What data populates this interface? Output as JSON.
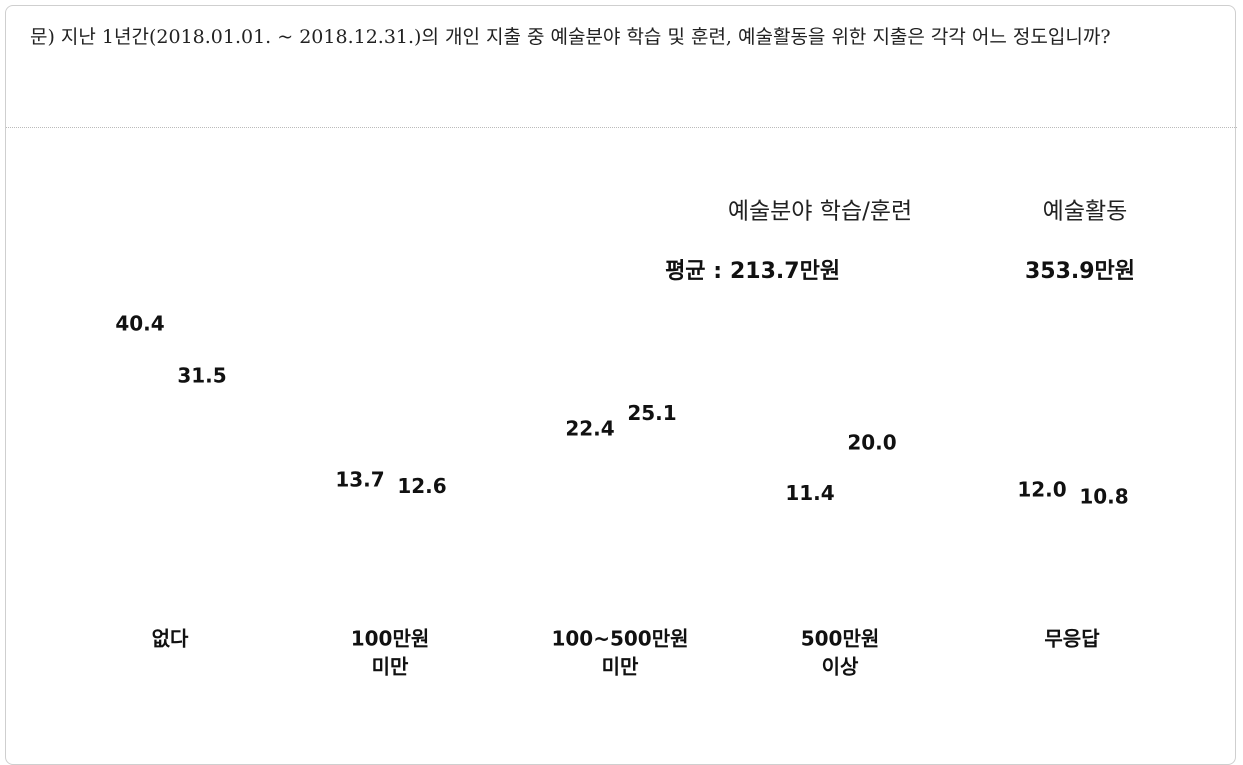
{
  "chart_data": {
    "type": "bar",
    "title": "문) 지난 1년간(2018.01.01. ~ 2018.12.31.)의 개인 지출 중 예술분야 학습 및 훈련, 예술활동을 위한 지출은 각각 어느 정도입니까?",
    "categories": [
      [
        "없다"
      ],
      [
        "100만원",
        "미만"
      ],
      [
        "100~500만원",
        "미만"
      ],
      [
        "500만원",
        "이상"
      ],
      [
        "무응답"
      ]
    ],
    "average_label": "평균 :",
    "series": [
      {
        "name": "예술분야 학습/훈련",
        "average": "213.7만원",
        "values": [
          40.4,
          13.7,
          22.4,
          11.4,
          12.0
        ],
        "value_labels": [
          "40.4",
          "13.7",
          "22.4",
          "11.4",
          "12.0"
        ]
      },
      {
        "name": "예술활동",
        "average": "353.9만원",
        "values": [
          31.5,
          12.6,
          25.1,
          20.0,
          10.8
        ],
        "value_labels": [
          "31.5",
          "12.6",
          "25.1",
          "20.0",
          "10.8"
        ]
      }
    ]
  }
}
